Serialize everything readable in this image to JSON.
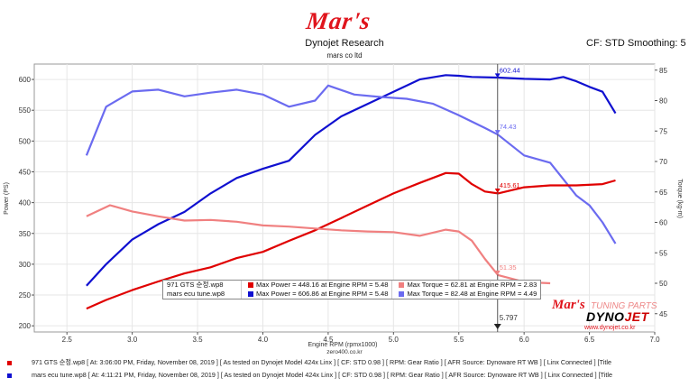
{
  "header": {
    "logo_text": "Mar's",
    "title": "Dynojet Research",
    "subtitle": "mars co ltd",
    "settings": "CF: STD Smoothing: 5"
  },
  "legend": {
    "rows": [
      {
        "run": "971 GTS 순정.wp8",
        "max_power": "Max Power = 448.16 at Engine RPM = 5.48",
        "max_torque": "Max Torque = 62.81 at Engine RPM = 2.83",
        "power_color": "#e00000",
        "torque_color": "#f08080"
      },
      {
        "run": "mars ecu tune.wp8",
        "max_power": "Max Power = 606.86 at Engine RPM = 5.48",
        "max_torque": "Max Torque = 82.48 at Engine RPM = 4.49",
        "power_color": "#1010d0",
        "torque_color": "#6b6bf0"
      }
    ]
  },
  "watermark": {
    "text": "Mar's",
    "tail": "TUNING PARTS",
    "brand_a": "DYNO",
    "brand_b": "JET",
    "url": "www.dynojet.co.kr"
  },
  "site": "zero400.co.kr",
  "footer": [
    {
      "color": "#e00000",
      "text": "971 GTS 순정.wp8 [ At: 3:06:00 PM, Friday, November 08, 2019 ] [ As tested on Dynojet Model 424x Linx ] [ CF: STD 0.98 ] [ RPM: Gear Ratio ] [ AFR Source: Dynoware RT WB ] [ Linx Connected ] [Title"
    },
    {
      "color": "#1010d0",
      "text": "mars ecu tune.wp8 [ At: 4:11:21 PM, Friday, November 08, 2019 ] [ As tested on Dynojet Model 424x Linx ] [ CF: STD 0.98 ] [ RPM: Gear Ratio ] [ AFR Source: Dynoware RT WB ] [ Linx Connected ] [Title"
    }
  ],
  "chart_data": {
    "type": "line",
    "xlabel": "Engine RPM (rpmx1000)",
    "ylabel_left": "Power (PS)",
    "ylabel_right": "Torque (kg-m)",
    "xlim": [
      2.25,
      7.0
    ],
    "ylim_left": [
      190,
      625
    ],
    "ylim_right": [
      42,
      86
    ],
    "x_ticks": [
      "2.5",
      "3.0",
      "3.5",
      "4.0",
      "4.5",
      "5.0",
      "5.5",
      "6.0",
      "6.5",
      "7.0"
    ],
    "y_ticks_left": [
      200,
      250,
      300,
      350,
      400,
      450,
      500,
      550,
      600
    ],
    "y_ticks_right": [
      45,
      50,
      55,
      60,
      65,
      70,
      75,
      80,
      85
    ],
    "cursor_x": 5.797,
    "cursor_label": "5.797",
    "cursor_annotations": [
      {
        "text": "602.44",
        "value": 602.44,
        "axis": "left",
        "color": "#1010d0"
      },
      {
        "text": "74.43",
        "value": 74.43,
        "axis": "right",
        "color": "#6b6bf0"
      },
      {
        "text": "415.61",
        "value": 415.61,
        "axis": "left",
        "color": "#e00000"
      },
      {
        "text": "51.35",
        "value": 51.35,
        "axis": "right",
        "color": "#f08080"
      }
    ],
    "series": [
      {
        "name": "mars ecu tune.wp8 Power",
        "axis": "left",
        "color": "#1010d0",
        "x": [
          2.65,
          2.8,
          3.0,
          3.2,
          3.4,
          3.6,
          3.8,
          4.0,
          4.2,
          4.4,
          4.6,
          4.8,
          5.0,
          5.2,
          5.4,
          5.5,
          5.6,
          5.8,
          6.0,
          6.2,
          6.3,
          6.4,
          6.5,
          6.6,
          6.7
        ],
        "y": [
          265,
          300,
          340,
          365,
          385,
          415,
          440,
          455,
          468,
          510,
          540,
          560,
          580,
          600,
          607,
          606,
          604,
          603,
          601,
          600,
          604,
          597,
          588,
          580,
          545
        ]
      },
      {
        "name": "mars ecu tune.wp8 Torque",
        "axis": "right",
        "color": "#6b6bf0",
        "x": [
          2.65,
          2.8,
          3.0,
          3.2,
          3.4,
          3.6,
          3.8,
          4.0,
          4.2,
          4.4,
          4.5,
          4.7,
          4.9,
          5.1,
          5.3,
          5.5,
          5.7,
          5.8,
          6.0,
          6.2,
          6.4,
          6.5,
          6.6,
          6.7
        ],
        "y": [
          71,
          79,
          81.5,
          81.8,
          80.7,
          81.3,
          81.8,
          81,
          79,
          80,
          82.48,
          81,
          80.6,
          80.3,
          79.5,
          77.6,
          75.5,
          74.4,
          71,
          69.8,
          64.4,
          62.8,
          60,
          56.5
        ]
      },
      {
        "name": "971 GTS 순정.wp8 Power",
        "axis": "left",
        "color": "#e00000",
        "x": [
          2.65,
          2.8,
          3.0,
          3.2,
          3.4,
          3.6,
          3.8,
          4.0,
          4.2,
          4.4,
          4.6,
          4.8,
          5.0,
          5.2,
          5.4,
          5.5,
          5.6,
          5.7,
          5.8,
          6.0,
          6.2,
          6.4,
          6.6,
          6.7
        ],
        "y": [
          228,
          242,
          258,
          272,
          285,
          295,
          310,
          320,
          338,
          355,
          375,
          395,
          415,
          432,
          448,
          447,
          430,
          418,
          415,
          425,
          428,
          428,
          430,
          436
        ]
      },
      {
        "name": "971 GTS 순정.wp8 Torque",
        "axis": "right",
        "color": "#f08080",
        "x": [
          2.65,
          2.83,
          3.0,
          3.2,
          3.4,
          3.6,
          3.8,
          4.0,
          4.2,
          4.4,
          4.6,
          4.8,
          5.0,
          5.2,
          5.4,
          5.5,
          5.6,
          5.7,
          5.8,
          6.0,
          6.2
        ],
        "y": [
          61,
          62.81,
          61.8,
          61,
          60.3,
          60.4,
          60.1,
          59.5,
          59.3,
          59,
          58.7,
          58.5,
          58.4,
          57.8,
          58.8,
          58.5,
          57,
          54,
          51.35,
          50.2,
          50
        ]
      }
    ]
  }
}
